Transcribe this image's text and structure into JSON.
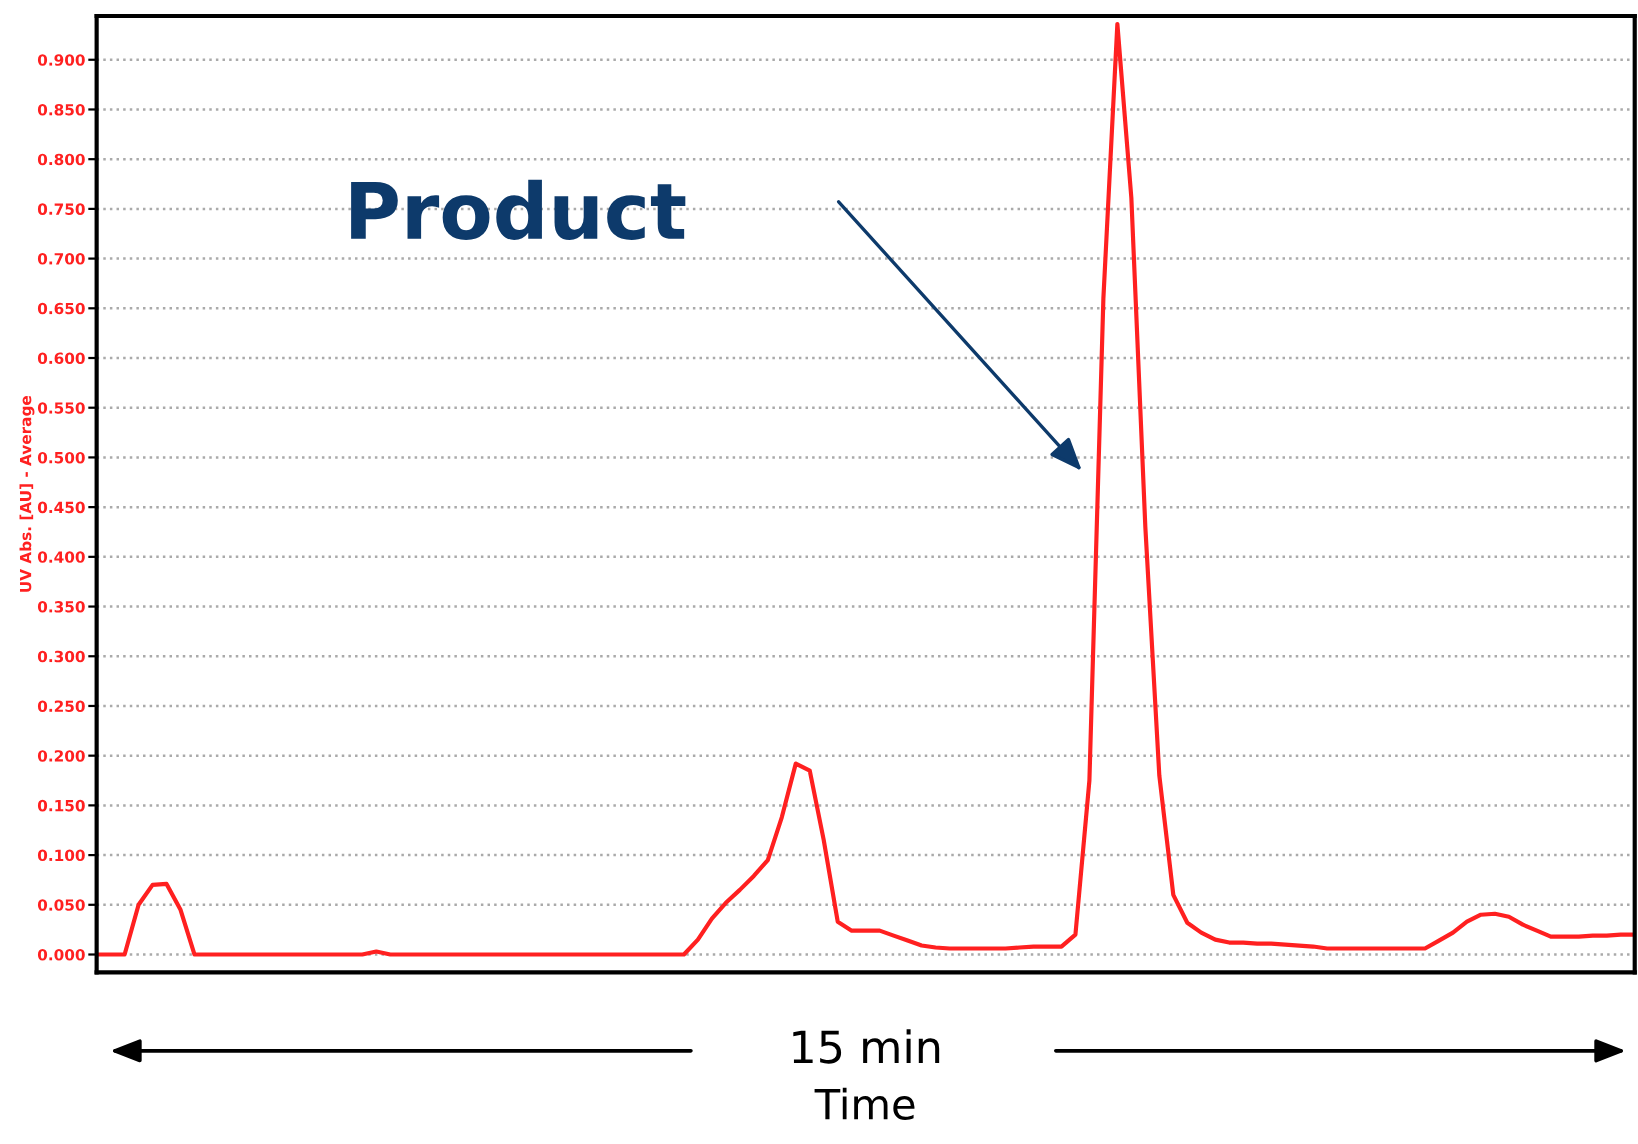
{
  "chart_data": {
    "type": "line",
    "xlabel": "Time",
    "ylabel": "UV Abs. [AU] - Average",
    "categories": [
      null,
      null,
      null,
      null,
      null,
      null,
      null,
      null,
      null,
      null,
      null,
      null,
      null,
      null,
      null,
      null,
      null,
      null,
      null,
      null,
      null,
      null,
      null,
      null,
      null,
      null,
      null,
      null,
      null,
      null,
      null,
      null,
      null,
      null,
      null,
      null,
      null,
      null,
      null,
      null,
      null,
      null,
      null,
      null,
      null,
      null,
      null,
      null,
      null,
      null,
      null,
      null,
      null,
      null,
      null,
      null,
      null,
      null,
      null,
      null,
      null,
      null,
      null,
      null,
      null,
      null,
      null,
      null,
      null,
      null,
      null,
      null,
      null,
      null,
      null,
      null,
      null,
      null,
      null,
      null,
      null,
      null,
      null,
      null,
      null,
      null,
      null,
      null,
      null,
      null,
      null,
      null,
      null,
      null,
      null,
      null,
      null,
      null,
      null,
      null,
      null,
      null,
      null,
      null,
      null,
      null,
      null,
      null,
      null,
      null,
      null
    ],
    "series": [
      {
        "color": "#ff2020",
        "values": [
          0,
          0,
          0,
          0.05,
          0.07,
          0.071,
          0.045,
          0,
          0,
          0,
          0,
          0,
          0,
          0,
          0,
          0,
          0,
          0,
          0,
          0,
          0.003,
          0,
          0,
          0,
          0,
          0,
          0,
          0,
          0,
          0,
          0,
          0,
          0,
          0,
          0,
          0,
          0,
          0,
          0,
          0,
          0,
          0,
          0,
          0.015,
          0.036,
          0.052,
          0.065,
          0.079,
          0.095,
          0.138,
          0.192,
          0.185,
          0.115,
          0.033,
          0.024,
          0.024,
          0.024,
          0.019,
          0.014,
          0.009,
          0.007,
          0.006,
          0.006,
          0.006,
          0.006,
          0.006,
          0.007,
          0.008,
          0.008,
          0.008,
          0.02,
          0.175,
          0.66,
          0.936,
          0.761,
          0.43,
          0.18,
          0.06,
          0.032,
          0.022,
          0.015,
          0.012,
          0.012,
          0.011,
          0.011,
          0.01,
          0.009,
          0.008,
          0.006,
          0.006,
          0.006,
          0.006,
          0.006,
          0.006,
          0.006,
          0.006,
          0.014,
          0.022,
          0.033,
          0.04,
          0.041,
          0.038,
          0.03,
          0.024,
          0.018,
          0.018,
          0.018,
          0.019,
          0.019,
          0.02,
          0.02
        ]
      }
    ],
    "ylim": [
      -0.018,
      0.944
    ],
    "yticks": [
      {
        "value": 0,
        "label": "0.000"
      },
      {
        "value": 0.05,
        "label": "0.050"
      },
      {
        "value": 0.1,
        "label": "0.100"
      },
      {
        "value": 0.15,
        "label": "0.150"
      },
      {
        "value": 0.2,
        "label": "0.200"
      },
      {
        "value": 0.25,
        "label": "0.250"
      },
      {
        "value": 0.3,
        "label": "0.300"
      },
      {
        "value": 0.35,
        "label": "0.350"
      },
      {
        "value": 0.4,
        "label": "0.400"
      },
      {
        "value": 0.45,
        "label": "0.450"
      },
      {
        "value": 0.5,
        "label": "0.500"
      },
      {
        "value": 0.55,
        "label": "0.550"
      },
      {
        "value": 0.6,
        "label": "0.600"
      },
      {
        "value": 0.65,
        "label": "0.650"
      },
      {
        "value": 0.7,
        "label": "0.700"
      },
      {
        "value": 0.75,
        "label": "0.750"
      },
      {
        "value": 0.8,
        "label": "0.800"
      },
      {
        "value": 0.85,
        "label": "0.850"
      },
      {
        "value": 0.9,
        "label": "0.900"
      }
    ],
    "grid": "y",
    "marker": "none",
    "line_style": "solid",
    "annotations": [
      "Product",
      "15 min"
    ]
  }
}
